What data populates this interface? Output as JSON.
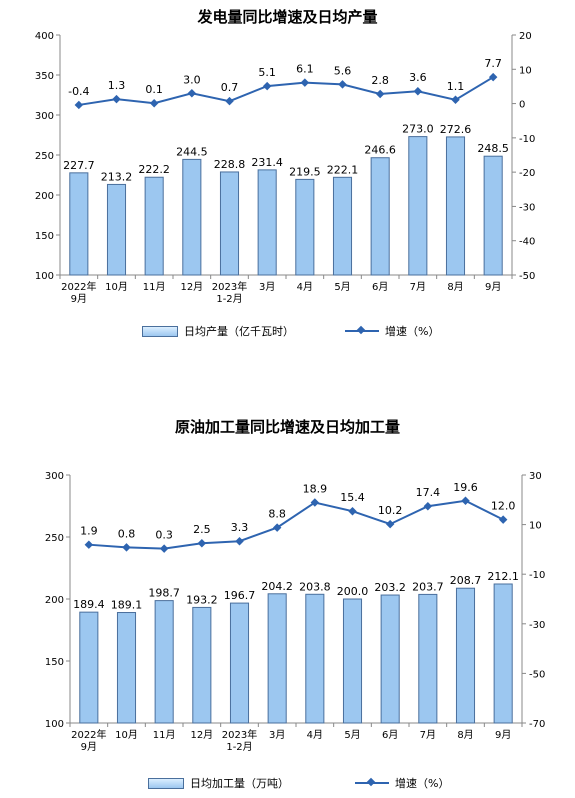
{
  "chart_data": [
    {
      "type": "bar",
      "title": "发电量同比增速及日均产量",
      "categories": [
        "2022年\n9月",
        "10月",
        "11月",
        "12月",
        "2023年\n1-2月",
        "3月",
        "4月",
        "5月",
        "6月",
        "7月",
        "8月",
        "9月"
      ],
      "series": [
        {
          "name": "日均产量（亿千瓦时）",
          "axis": "left",
          "type": "bar",
          "values": [
            227.7,
            213.2,
            222.2,
            244.5,
            228.8,
            231.4,
            219.5,
            222.1,
            246.6,
            273.0,
            272.6,
            248.5
          ]
        },
        {
          "name": "增速（%）",
          "axis": "right",
          "type": "line",
          "values": [
            -0.4,
            1.3,
            0.1,
            3.0,
            0.7,
            5.1,
            6.1,
            5.6,
            2.8,
            3.6,
            1.1,
            7.7
          ]
        }
      ],
      "ylim_left": [
        100,
        400
      ],
      "yticks_left": [
        100,
        150,
        200,
        250,
        300,
        350,
        400
      ],
      "ylim_right": [
        -50,
        20
      ],
      "yticks_right": [
        -50,
        -40,
        -30,
        -20,
        -10,
        0,
        10,
        20
      ],
      "grid": false,
      "legend": "bottom",
      "colors": {
        "bar": "#9cc7f0",
        "bar_edge": "#4a6f9c",
        "line": "#2e64b0"
      }
    },
    {
      "type": "bar",
      "title": "原油加工量同比增速及日均加工量",
      "categories": [
        "2022年\n9月",
        "10月",
        "11月",
        "12月",
        "2023年\n1-2月",
        "3月",
        "4月",
        "5月",
        "6月",
        "7月",
        "8月",
        "9月"
      ],
      "series": [
        {
          "name": "日均加工量（万吨）",
          "axis": "left",
          "type": "bar",
          "values": [
            189.4,
            189.1,
            198.7,
            193.2,
            196.7,
            204.2,
            203.8,
            200.0,
            203.2,
            203.7,
            208.7,
            212.1
          ]
        },
        {
          "name": "增速（%）",
          "axis": "right",
          "type": "line",
          "values": [
            1.9,
            0.8,
            0.3,
            2.5,
            3.3,
            8.8,
            18.9,
            15.4,
            10.2,
            17.4,
            19.6,
            12.0
          ]
        }
      ],
      "ylim_left": [
        100,
        300
      ],
      "yticks_left": [
        100,
        150,
        200,
        250,
        300
      ],
      "ylim_right": [
        -70,
        30
      ],
      "yticks_right": [
        -70,
        -50,
        -30,
        -10,
        10,
        30
      ],
      "grid": false,
      "legend": "bottom",
      "colors": {
        "bar": "#9cc7f0",
        "bar_edge": "#4a6f9c",
        "line": "#2e64b0"
      }
    }
  ]
}
